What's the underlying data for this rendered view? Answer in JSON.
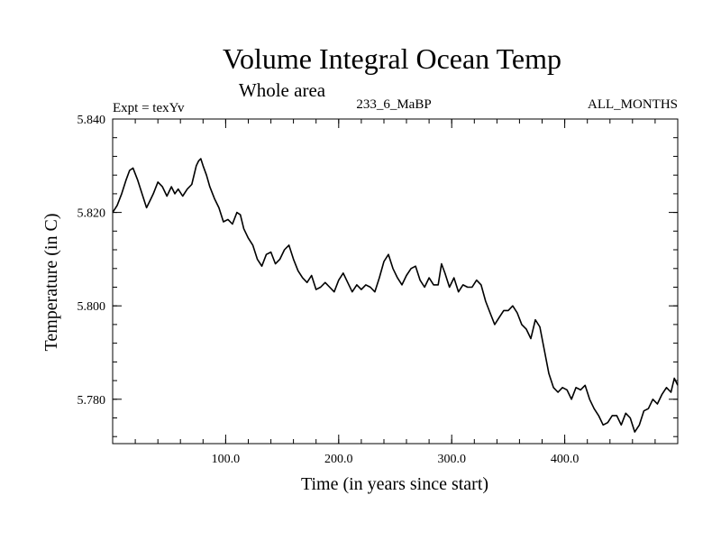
{
  "chart_data": {
    "type": "line",
    "title": "Volume Integral Ocean Temp",
    "subtitle": "Whole area",
    "experiment_label": "Expt = texYv",
    "run_label": "233_6_MaBP",
    "months_label": "ALL_MONTHS",
    "xlabel": "Time (in years since start)",
    "ylabel": "Temperature (in C)",
    "xlim": [
      0,
      500
    ],
    "ylim": [
      5.7705,
      5.84
    ],
    "x_ticks": [
      {
        "value": 100,
        "label": "100.0"
      },
      {
        "value": 200,
        "label": "200.0"
      },
      {
        "value": 300,
        "label": "300.0"
      },
      {
        "value": 400,
        "label": "400.0"
      }
    ],
    "y_ticks": [
      {
        "value": 5.78,
        "label": "5.780"
      },
      {
        "value": 5.8,
        "label": "5.800"
      },
      {
        "value": 5.82,
        "label": "5.820"
      },
      {
        "value": 5.84,
        "label": "5.840"
      }
    ],
    "x_minor_step": 20,
    "y_minor_step": 0.004,
    "grid": false,
    "series": [
      {
        "color": "#000000",
        "x": [
          0,
          4,
          8,
          12,
          15,
          18,
          22,
          26,
          30,
          33,
          36,
          40,
          44,
          48,
          52,
          55,
          58,
          62,
          66,
          70,
          74,
          76,
          78,
          80,
          83,
          86,
          90,
          94,
          98,
          102,
          106,
          110,
          113,
          116,
          120,
          124,
          128,
          132,
          136,
          140,
          144,
          148,
          152,
          156,
          160,
          164,
          168,
          172,
          176,
          180,
          184,
          188,
          192,
          196,
          200,
          204,
          208,
          212,
          216,
          220,
          224,
          228,
          232,
          236,
          240,
          244,
          248,
          252,
          256,
          260,
          264,
          268,
          272,
          276,
          280,
          284,
          288,
          291,
          294,
          298,
          302,
          306,
          310,
          314,
          318,
          322,
          326,
          330,
          334,
          338,
          342,
          346,
          350,
          354,
          358,
          362,
          366,
          370,
          374,
          378,
          382,
          386,
          390,
          394,
          398,
          402,
          406,
          410,
          414,
          418,
          422,
          426,
          430,
          434,
          438,
          442,
          446,
          450,
          454,
          458,
          462,
          466,
          470,
          474,
          478,
          482,
          486,
          490,
          494,
          497,
          500
        ],
        "y": [
          5.82,
          5.8215,
          5.824,
          5.827,
          5.829,
          5.8295,
          5.827,
          5.824,
          5.821,
          5.8225,
          5.824,
          5.8265,
          5.8255,
          5.8235,
          5.8255,
          5.824,
          5.825,
          5.8235,
          5.825,
          5.826,
          5.83,
          5.831,
          5.8315,
          5.83,
          5.828,
          5.8255,
          5.823,
          5.821,
          5.818,
          5.8185,
          5.8175,
          5.82,
          5.8195,
          5.8165,
          5.8145,
          5.813,
          5.81,
          5.8085,
          5.811,
          5.8115,
          5.809,
          5.81,
          5.812,
          5.813,
          5.81,
          5.8075,
          5.806,
          5.805,
          5.8065,
          5.8035,
          5.804,
          5.805,
          5.804,
          5.803,
          5.8055,
          5.807,
          5.805,
          5.803,
          5.8045,
          5.8035,
          5.8045,
          5.804,
          5.803,
          5.806,
          5.8095,
          5.811,
          5.808,
          5.806,
          5.8045,
          5.8065,
          5.808,
          5.8085,
          5.8055,
          5.804,
          5.806,
          5.8045,
          5.8045,
          5.809,
          5.807,
          5.804,
          5.806,
          5.803,
          5.8045,
          5.804,
          5.804,
          5.8055,
          5.8045,
          5.801,
          5.7985,
          5.796,
          5.7975,
          5.799,
          5.799,
          5.8,
          5.7985,
          5.796,
          5.795,
          5.793,
          5.797,
          5.7955,
          5.7905,
          5.7855,
          5.7825,
          5.7815,
          5.7825,
          5.782,
          5.78,
          5.7825,
          5.782,
          5.783,
          5.78,
          5.778,
          5.7765,
          5.7745,
          5.775,
          5.7765,
          5.7765,
          5.7745,
          5.777,
          5.776,
          5.773,
          5.7745,
          5.7775,
          5.778,
          5.78,
          5.779,
          5.781,
          5.7825,
          5.7815,
          5.7845,
          5.783
        ]
      }
    ]
  }
}
